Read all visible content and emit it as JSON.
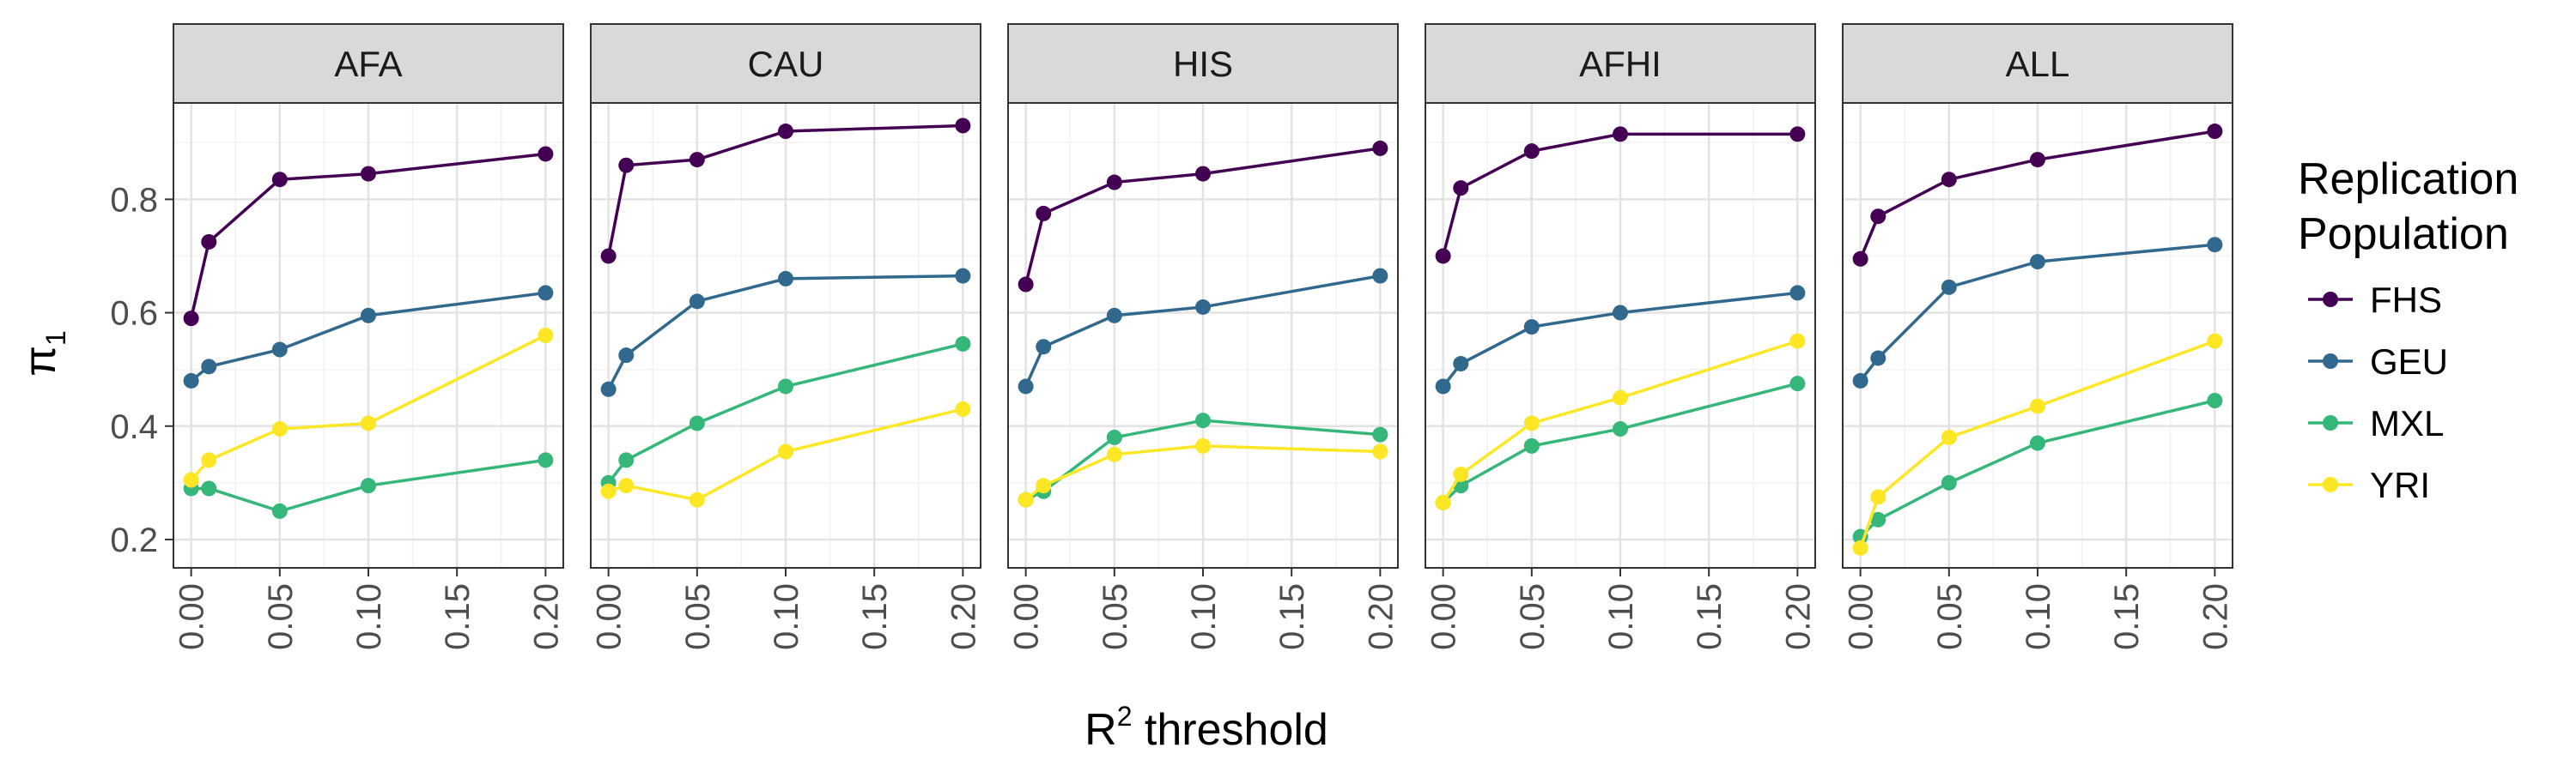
{
  "chart_data": {
    "type": "line",
    "facets": [
      "AFA",
      "CAU",
      "HIS",
      "AFHI",
      "ALL"
    ],
    "x": [
      0,
      0.01,
      0.05,
      0.1,
      0.2
    ],
    "x_tick_labels": [
      "0.00",
      "0.05",
      "0.10",
      "0.15",
      "0.20"
    ],
    "xlim": [
      -0.01,
      0.21
    ],
    "ylim": [
      0.15,
      0.97
    ],
    "y_ticks": [
      0.2,
      0.4,
      0.6,
      0.8
    ],
    "y_tick_labels": [
      "0.2",
      "0.4",
      "0.6",
      "0.8"
    ],
    "xlabel": "R",
    "xlabel_sup": "2",
    "xlabel_rest": " threshold",
    "ylabel": "π",
    "ylabel_sub": "1",
    "grid": true,
    "legend": {
      "title_line1": "Replication",
      "title_line2": "Population",
      "position": "right"
    },
    "series": [
      {
        "name": "FHS",
        "color": "#440154",
        "values": {
          "AFA": [
            0.59,
            0.725,
            0.835,
            0.845,
            0.88
          ],
          "CAU": [
            0.7,
            0.86,
            0.87,
            0.92,
            0.93
          ],
          "HIS": [
            0.65,
            0.775,
            0.83,
            0.845,
            0.89
          ],
          "AFHI": [
            0.7,
            0.82,
            0.885,
            0.915,
            0.915
          ],
          "ALL": [
            0.695,
            0.77,
            0.835,
            0.87,
            0.92
          ]
        }
      },
      {
        "name": "GEU",
        "color": "#31688E",
        "values": {
          "AFA": [
            0.48,
            0.505,
            0.535,
            0.595,
            0.635
          ],
          "CAU": [
            0.465,
            0.525,
            0.62,
            0.66,
            0.665
          ],
          "HIS": [
            0.47,
            0.54,
            0.595,
            0.61,
            0.665
          ],
          "AFHI": [
            0.47,
            0.51,
            0.575,
            0.6,
            0.635
          ],
          "ALL": [
            0.48,
            0.52,
            0.645,
            0.69,
            0.72
          ]
        }
      },
      {
        "name": "MXL",
        "color": "#35B779",
        "values": {
          "AFA": [
            0.29,
            0.29,
            0.25,
            0.295,
            0.34
          ],
          "CAU": [
            0.3,
            0.34,
            0.405,
            0.47,
            0.545
          ],
          "HIS": [
            0.27,
            0.285,
            0.38,
            0.41,
            0.385
          ],
          "AFHI": [
            0.265,
            0.295,
            0.365,
            0.395,
            0.475
          ],
          "ALL": [
            0.205,
            0.235,
            0.3,
            0.37,
            0.445
          ]
        }
      },
      {
        "name": "YRI",
        "color": "#FDE725",
        "values": {
          "AFA": [
            0.305,
            0.34,
            0.395,
            0.405,
            0.56
          ],
          "CAU": [
            0.285,
            0.295,
            0.27,
            0.355,
            0.43
          ],
          "HIS": [
            0.27,
            0.295,
            0.35,
            0.365,
            0.355
          ],
          "AFHI": [
            0.265,
            0.315,
            0.405,
            0.45,
            0.55
          ],
          "ALL": [
            0.185,
            0.275,
            0.38,
            0.435,
            0.55
          ]
        }
      }
    ]
  }
}
